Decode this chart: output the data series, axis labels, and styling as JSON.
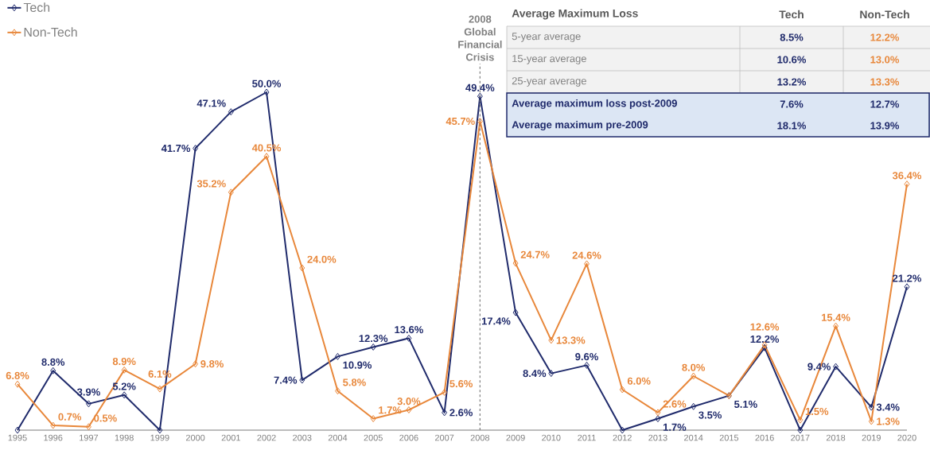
{
  "chart_data": {
    "type": "line",
    "x": [
      1995,
      1996,
      1997,
      1998,
      1999,
      2000,
      2001,
      2002,
      2003,
      2004,
      2005,
      2006,
      2007,
      2008,
      2009,
      2010,
      2011,
      2012,
      2013,
      2014,
      2015,
      2016,
      2017,
      2018,
      2019,
      2020
    ],
    "xlim": [
      1995,
      2020
    ],
    "xticks": [
      1995,
      1996,
      1997,
      1998,
      1999,
      2000,
      2001,
      2002,
      2003,
      2004,
      2005,
      2006,
      2007,
      2008,
      2009,
      2010,
      2011,
      2012,
      2013,
      2014,
      2015,
      2016,
      2017,
      2018,
      2019,
      2020
    ],
    "marker": "diamond",
    "line_style": "solid",
    "legend": "top left",
    "series": [
      {
        "name": "Tech",
        "color": "#1f2a6b",
        "values": [
          0,
          8.8,
          3.9,
          5.2,
          0,
          41.7,
          47.1,
          50.0,
          7.4,
          10.9,
          12.3,
          13.6,
          2.6,
          49.4,
          17.4,
          8.4,
          9.6,
          0,
          1.7,
          3.5,
          5.1,
          12.2,
          0,
          9.4,
          3.4,
          21.2
        ],
        "value_labels": [
          null,
          "8.8%",
          "3.9%",
          "5.2%",
          null,
          "41.7%",
          "47.1%",
          "50.0%",
          "7.4%",
          "10.9%",
          "12.3%",
          "13.6%",
          "2.6%",
          "49.4%",
          "17.4%",
          "8.4%",
          "9.6%",
          null,
          "1.7%",
          "3.5%",
          "5.1%",
          "12.2%",
          null,
          "9.4%",
          "3.4%",
          "21.2%"
        ]
      },
      {
        "name": "Non-Tech",
        "color": "#e8873a",
        "values": [
          6.8,
          0.7,
          0.5,
          8.9,
          6.1,
          9.8,
          35.2,
          40.5,
          24.0,
          5.8,
          1.7,
          3.0,
          5.6,
          45.7,
          24.7,
          13.3,
          24.6,
          6.0,
          2.6,
          8.0,
          5.1,
          12.6,
          1.5,
          15.4,
          1.3,
          36.4
        ],
        "value_labels": [
          "6.8%",
          "0.7%",
          "0.5%",
          "8.9%",
          "6.1%",
          "9.8%",
          "35.2%",
          "40.5%",
          "24.0%",
          "5.8%",
          "1.7%",
          "3.0%",
          "5.6%",
          "45.7%",
          "24.7%",
          "13.3%",
          "24.6%",
          "6.0%",
          "2.6%",
          "8.0%",
          null,
          "12.6%",
          "1.5%",
          "15.4%",
          "1.3%",
          "36.4%"
        ]
      }
    ],
    "ref_lines": [
      {
        "axis": "x",
        "value": 2008,
        "label": "2008 Global Financial Crisis",
        "color": "#808080",
        "line_style": "dashed"
      }
    ],
    "annotations": [
      "Average Maximum Loss",
      "Tech",
      "Non-Tech",
      "5-year average",
      "8.5%",
      "12.2%",
      "15-year average",
      "10.6%",
      "13.0%",
      "25-year average",
      "13.2%",
      "13.3%",
      "Average maximum loss post-2009",
      "7.6%",
      "12.7%",
      "Average maximum pre-2009",
      "18.1%",
      "13.9%"
    ]
  }
}
